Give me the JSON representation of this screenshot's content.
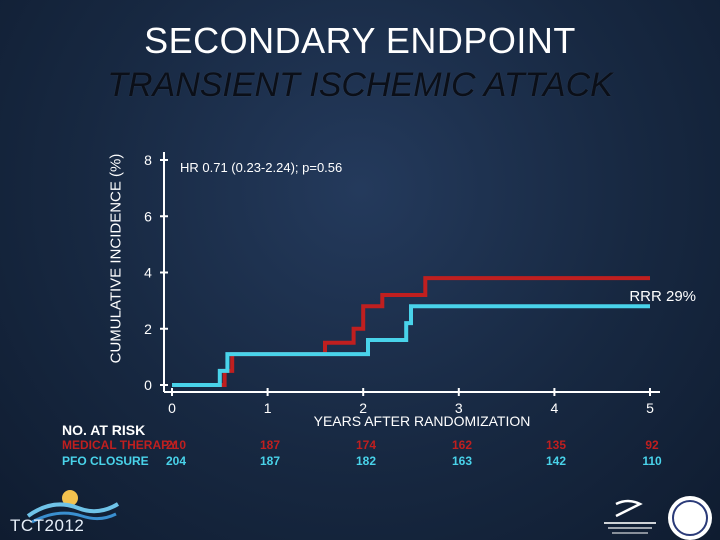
{
  "header": {
    "title": "SECONDARY ENDPOINT",
    "subtitle": "TRANSIENT ISCHEMIC ATTACK"
  },
  "chart_data": {
    "type": "line",
    "step": true,
    "title": "TRANSIENT ISCHEMIC ATTACK",
    "xlabel": "YEARS AFTER RANDOMIZATION",
    "ylabel": "CUMULATIVE INCIDENCE (%)",
    "x_ticks": [
      "0",
      "1",
      "2",
      "3",
      "4",
      "5"
    ],
    "y_ticks": [
      "0",
      "2",
      "4",
      "6",
      "8"
    ],
    "xlim": [
      0,
      5
    ],
    "ylim": [
      0,
      8
    ],
    "annotation": "HR 0.71 (0.23-2.24); p=0.56",
    "rrr_label": "RRR 29%",
    "series": [
      {
        "name": "MEDICAL THERAPY",
        "color": "#c01f1f",
        "points": [
          [
            0,
            0
          ],
          [
            0.55,
            0
          ],
          [
            0.55,
            0.5
          ],
          [
            0.63,
            0.5
          ],
          [
            0.63,
            1.1
          ],
          [
            1.6,
            1.1
          ],
          [
            1.6,
            1.5
          ],
          [
            1.9,
            1.5
          ],
          [
            1.9,
            2.0
          ],
          [
            2.0,
            2.0
          ],
          [
            2.0,
            2.8
          ],
          [
            2.2,
            2.8
          ],
          [
            2.2,
            3.2
          ],
          [
            2.65,
            3.2
          ],
          [
            2.65,
            3.8
          ],
          [
            5.0,
            3.8
          ]
        ]
      },
      {
        "name": "PFO CLOSURE",
        "color": "#49d3ea",
        "points": [
          [
            0,
            0
          ],
          [
            0.5,
            0
          ],
          [
            0.5,
            0.5
          ],
          [
            0.58,
            0.5
          ],
          [
            0.58,
            1.1
          ],
          [
            2.05,
            1.1
          ],
          [
            2.05,
            1.6
          ],
          [
            2.45,
            1.6
          ],
          [
            2.45,
            2.2
          ],
          [
            2.5,
            2.2
          ],
          [
            2.5,
            2.8
          ],
          [
            5.0,
            2.8
          ]
        ]
      }
    ]
  },
  "risk_table": {
    "title": "NO. AT RISK",
    "rows": [
      {
        "label": "MEDICAL THERAPY",
        "color": "#c01f1f",
        "values": [
          "210",
          "187",
          "174",
          "162",
          "135",
          "92"
        ]
      },
      {
        "label": "PFO CLOSURE",
        "color": "#49d3ea",
        "values": [
          "204",
          "187",
          "182",
          "163",
          "142",
          "110"
        ]
      }
    ]
  },
  "footer": {
    "conference": "TCT2012"
  }
}
